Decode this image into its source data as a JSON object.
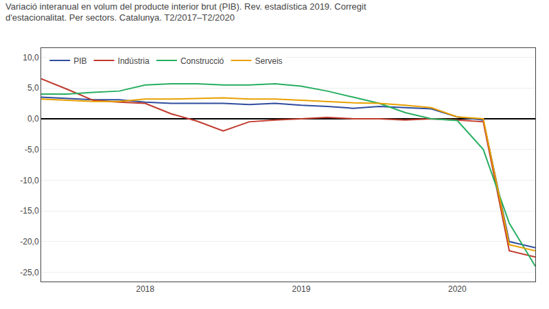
{
  "chart_data": {
    "type": "line",
    "title": "Variació interanual en volum del producte interior brut (PIB). Rev. estadística 2019. Corregit\nd'estacionalitat. Per sectors. Catalunya. T2/2017–T2/2020",
    "categories": [
      null,
      null,
      null,
      null,
      "2018",
      null,
      null,
      null,
      null,
      null,
      "2019",
      null,
      null,
      null,
      null,
      null,
      "2020",
      null,
      null,
      null
    ],
    "series": [
      {
        "name": "PIB",
        "color": "#2e4d9e",
        "values": [
          3.5,
          3.3,
          3.1,
          3.1,
          2.7,
          2.5,
          2.5,
          2.5,
          2.3,
          2.5,
          2.2,
          2.0,
          1.7,
          2.0,
          1.8,
          1.6,
          0.3,
          -0.2,
          -20.0,
          -21.0
        ]
      },
      {
        "name": "Indústria",
        "color": "#c0392b",
        "values": [
          6.5,
          4.8,
          3.0,
          2.7,
          2.5,
          0.8,
          -0.4,
          -2.0,
          -0.5,
          -0.2,
          0.0,
          0.2,
          0.0,
          0.0,
          -0.2,
          0.0,
          -0.2,
          -0.5,
          -21.5,
          -22.5
        ]
      },
      {
        "name": "Construcció",
        "color": "#27ae60",
        "values": [
          4.0,
          4.0,
          4.3,
          4.5,
          5.5,
          5.7,
          5.7,
          5.5,
          5.5,
          5.7,
          5.3,
          4.5,
          3.5,
          2.5,
          1.0,
          0.0,
          -0.3,
          -5.0,
          -17.0,
          -24.0
        ]
      },
      {
        "name": "Serveis",
        "color": "#e8a000",
        "values": [
          3.2,
          3.0,
          2.8,
          2.8,
          3.2,
          3.2,
          3.3,
          3.4,
          3.2,
          3.2,
          3.0,
          2.8,
          2.6,
          2.5,
          2.2,
          1.8,
          0.3,
          0.0,
          -20.5,
          -21.5
        ]
      }
    ],
    "ylim": [
      -26.5,
      11.5
    ],
    "yticks": [
      {
        "value": 10,
        "label": "10,0"
      },
      {
        "value": 5,
        "label": "5,0"
      },
      {
        "value": 0,
        "label": "0,0"
      },
      {
        "value": -5,
        "label": "-5,0"
      },
      {
        "value": -10,
        "label": "-10,0"
      },
      {
        "value": -15,
        "label": "-15,0"
      },
      {
        "value": -20,
        "label": "-20,0"
      },
      {
        "value": -25,
        "label": "-25,0"
      }
    ],
    "grid": true,
    "legend": "upper left",
    "line_style": "solid"
  }
}
